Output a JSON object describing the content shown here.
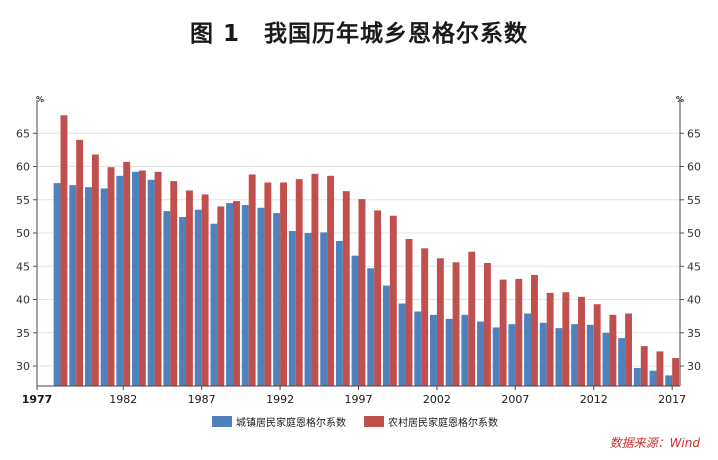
{
  "chart_data": {
    "type": "bar",
    "title": "图 1　我国历年城乡恩格尔系数",
    "unit_left": "%",
    "unit_right": "%",
    "ylim": [
      27,
      70
    ],
    "yticks": [
      30,
      35,
      40,
      45,
      50,
      55,
      60,
      65
    ],
    "categories": [
      1978,
      1979,
      1980,
      1981,
      1982,
      1983,
      1984,
      1985,
      1986,
      1987,
      1988,
      1989,
      1990,
      1991,
      1992,
      1993,
      1994,
      1995,
      1996,
      1997,
      1998,
      1999,
      2000,
      2001,
      2002,
      2003,
      2004,
      2005,
      2006,
      2007,
      2008,
      2009,
      2010,
      2011,
      2012,
      2013,
      2014,
      2015,
      2016,
      2017
    ],
    "xtick_labels": [
      "1977",
      "1982",
      "1987",
      "1992",
      "1997",
      "2002",
      "2007",
      "2012",
      "2017"
    ],
    "series": [
      {
        "name": "城镇居民家庭恩格尔系数",
        "color": "#4f81bd",
        "values": [
          57.5,
          57.2,
          56.9,
          56.7,
          58.6,
          59.2,
          58.0,
          53.3,
          52.4,
          53.5,
          51.4,
          54.5,
          54.2,
          53.8,
          53.0,
          50.3,
          50.0,
          50.1,
          48.8,
          46.6,
          44.7,
          42.1,
          39.4,
          38.2,
          37.7,
          37.1,
          37.7,
          36.7,
          35.8,
          36.3,
          37.9,
          36.5,
          35.7,
          36.3,
          36.2,
          35.0,
          34.2,
          29.7,
          29.3,
          28.6
        ]
      },
      {
        "name": "农村居民家庭恩格尔系数",
        "color": "#c0504d",
        "values": [
          67.7,
          64.0,
          61.8,
          59.9,
          60.7,
          59.4,
          59.2,
          57.8,
          56.4,
          55.8,
          54.0,
          54.8,
          58.8,
          57.6,
          57.6,
          58.1,
          58.9,
          58.6,
          56.3,
          55.1,
          53.4,
          52.6,
          49.1,
          47.7,
          46.2,
          45.6,
          47.2,
          45.5,
          43.0,
          43.1,
          43.7,
          41.0,
          41.1,
          40.4,
          39.3,
          37.7,
          37.9,
          33.0,
          32.2,
          31.2
        ]
      }
    ],
    "grid": true,
    "legend": "bottom"
  },
  "source": "数据来源：Wind"
}
